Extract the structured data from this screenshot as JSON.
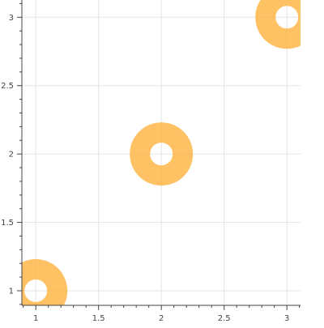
{
  "chart_data": {
    "type": "scatter",
    "marker": "annulus",
    "points": [
      {
        "x": 1,
        "y": 1
      },
      {
        "x": 2,
        "y": 2
      },
      {
        "x": 3,
        "y": 3
      }
    ],
    "xlim": [
      0.9,
      3.1
    ],
    "ylim": [
      0.9,
      3.1
    ],
    "x_ticks": [
      "1",
      "1.5",
      "2",
      "2.5",
      "3"
    ],
    "y_ticks": [
      "1",
      "1.5",
      "2",
      "2.5",
      "3"
    ],
    "grid": true,
    "title": "",
    "xlabel": "",
    "ylabel": ""
  },
  "colors": {
    "marker_fill": "#fdae32",
    "marker_alpha": 0.75,
    "grid": "#e5e5e5",
    "axis": "#444444",
    "background": "#ffffff"
  }
}
